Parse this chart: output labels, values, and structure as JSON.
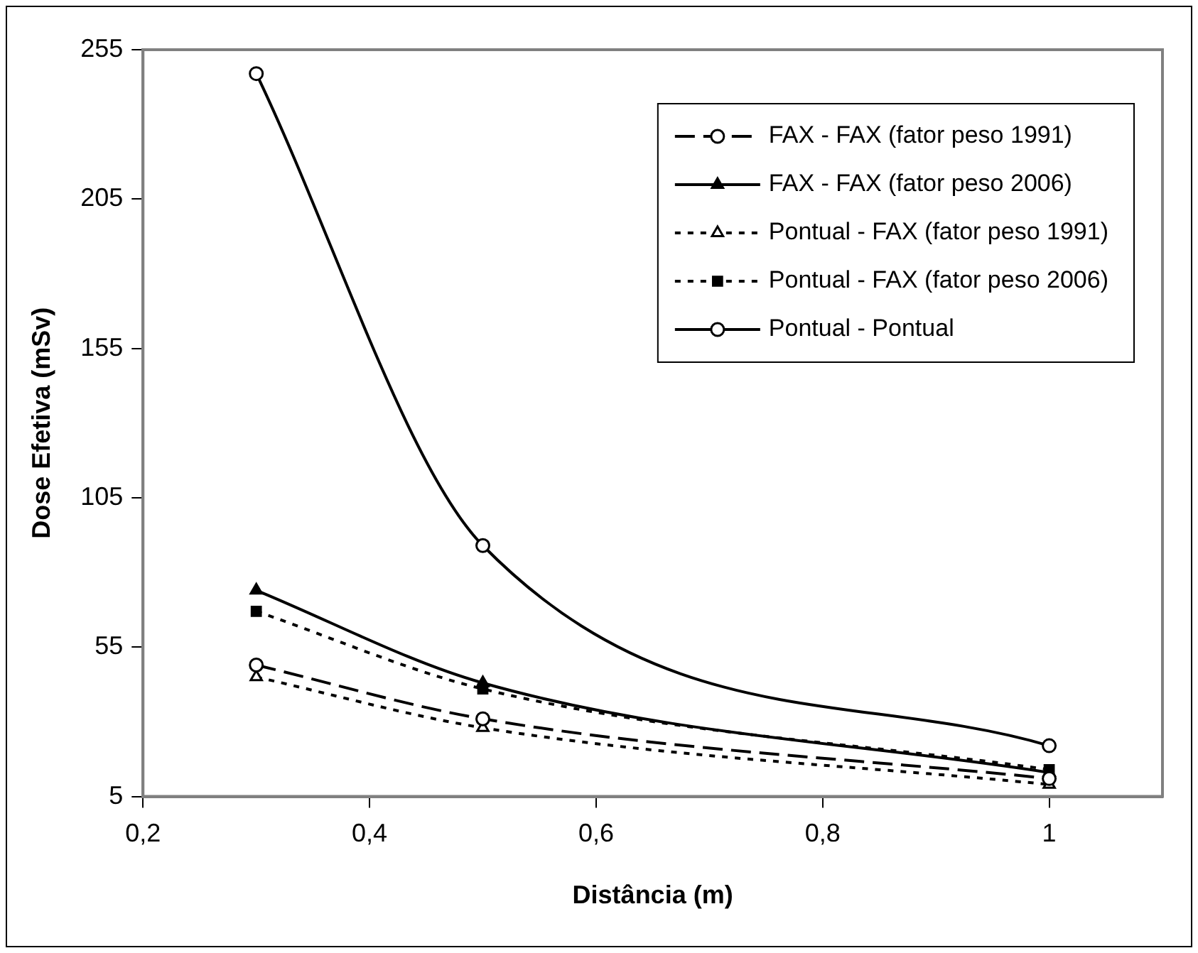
{
  "chart_data": {
    "type": "line",
    "xlabel": "Distância (m)",
    "ylabel": "Dose Efetiva (mSv)",
    "x": [
      0.3,
      0.5,
      1
    ],
    "xlim": [
      0.2,
      1.1
    ],
    "xticks": [
      {
        "value": 0.2,
        "label": "0,2"
      },
      {
        "value": 0.4,
        "label": "0,4"
      },
      {
        "value": 0.6,
        "label": "0,6"
      },
      {
        "value": 0.8,
        "label": "0,8"
      },
      {
        "value": 1,
        "label": "1"
      }
    ],
    "ylim": [
      5,
      255
    ],
    "yticks": [
      5,
      55,
      105,
      155,
      205,
      255
    ],
    "grid": false,
    "legend": "top right",
    "series": [
      {
        "name": "FAX - FAX (fator peso 1991)",
        "color": "#000000",
        "values": [
          49,
          31,
          11
        ],
        "marker": "circle",
        "line_style": "dashed"
      },
      {
        "name": "FAX - FAX (fator peso 2006)",
        "color": "#000000",
        "values": [
          74,
          43,
          13
        ],
        "marker": "triangle",
        "line_style": "solid"
      },
      {
        "name": "Pontual - FAX (fator peso 1991)",
        "color": "#000000",
        "values": [
          45,
          28,
          9
        ],
        "marker": "triangle",
        "line_style": "dotted"
      },
      {
        "name": "Pontual - FAX (fator peso 2006)",
        "color": "#000000",
        "values": [
          67,
          41,
          14
        ],
        "marker": "square",
        "line_style": "dotted"
      },
      {
        "name": "Pontual - Pontual",
        "color": "#000000",
        "values": [
          247,
          89,
          22
        ],
        "marker": "circle",
        "line_style": "solid"
      }
    ]
  }
}
